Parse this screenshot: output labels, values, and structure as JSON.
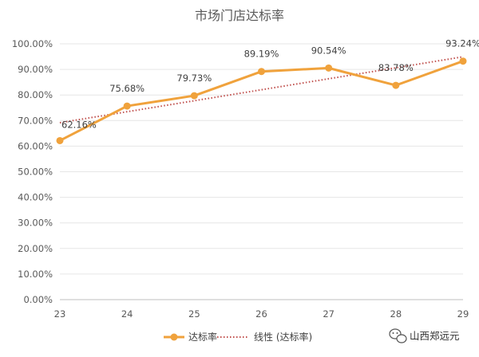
{
  "chart_data": {
    "type": "line",
    "title": "市场门店达标率",
    "x": [
      "23",
      "24",
      "25",
      "26",
      "27",
      "28",
      "29"
    ],
    "series": [
      {
        "name": "达标率",
        "values": [
          62.16,
          75.68,
          79.73,
          89.19,
          90.54,
          83.78,
          93.24
        ],
        "labels": [
          "62.16%",
          "75.68%",
          "79.73%",
          "89.19%",
          "90.54%",
          "83.78%",
          "93.24%"
        ],
        "color": "#F0A23C",
        "style": "solid-markers"
      },
      {
        "name": "线性 (达标率)",
        "type": "linear-trendline",
        "color": "#C0504D",
        "style": "dotted"
      }
    ],
    "y_ticks": [
      "0.00%",
      "10.00%",
      "20.00%",
      "30.00%",
      "40.00%",
      "50.00%",
      "60.00%",
      "70.00%",
      "80.00%",
      "90.00%",
      "100.00%"
    ],
    "ylim": [
      0,
      100
    ],
    "grid": true,
    "legend_position": "bottom"
  },
  "watermark": {
    "text": "山西郑远元",
    "icon": "wechat-icon"
  }
}
